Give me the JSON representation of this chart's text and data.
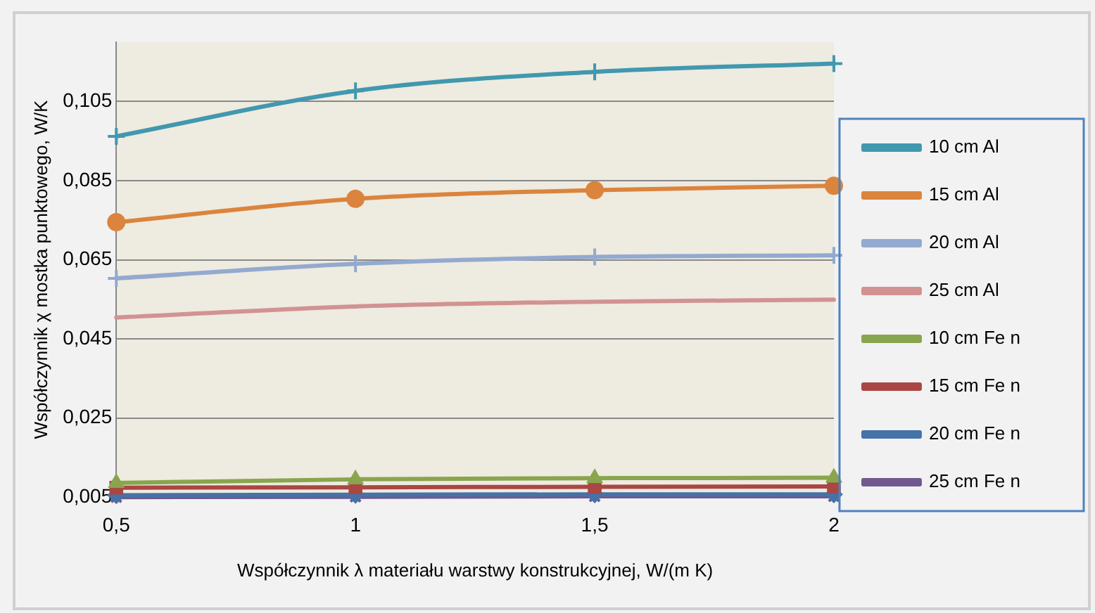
{
  "chart_data": {
    "type": "line",
    "xlabel": "Współczynnik λ materiału warstwy konstrukcyjnej, W/(m K)",
    "ylabel": "Współczynnik χ mostka punktowego, W/K",
    "x": [
      0.5,
      1,
      1.5,
      2
    ],
    "xlim": [
      0.5,
      2
    ],
    "xticks": [
      {
        "value": 0.5,
        "label": "0,5"
      },
      {
        "value": 1,
        "label": "1"
      },
      {
        "value": 1.5,
        "label": "1,5"
      },
      {
        "value": 2,
        "label": "2"
      }
    ],
    "ylim": [
      0.005,
      0.12
    ],
    "yticks": [
      {
        "value": 0.005,
        "label": "0,005"
      },
      {
        "value": 0.025,
        "label": "0,025"
      },
      {
        "value": 0.045,
        "label": "0,045"
      },
      {
        "value": 0.065,
        "label": "0,065"
      },
      {
        "value": 0.085,
        "label": "0,085"
      },
      {
        "value": 0.105,
        "label": "0,105"
      }
    ],
    "grid": "y",
    "legend": "right",
    "line_style": "solid",
    "series": [
      {
        "name": "10 cm Al",
        "color": "#4198af",
        "marker": "cross",
        "values": [
          0.0962,
          0.1077,
          0.1125,
          0.1146
        ]
      },
      {
        "name": "15 cm Al",
        "color": "#db843d",
        "marker": "circle",
        "values": [
          0.0745,
          0.0804,
          0.0826,
          0.0837
        ]
      },
      {
        "name": "20 cm Al",
        "color": "#93a9cf",
        "marker": "cross",
        "values": [
          0.0603,
          0.064,
          0.0657,
          0.0661
        ]
      },
      {
        "name": "25 cm Al",
        "color": "#d19392",
        "marker": "none",
        "values": [
          0.0504,
          0.0532,
          0.0544,
          0.0549
        ]
      },
      {
        "name": "10 cm Fe n",
        "color": "#89a54e",
        "marker": "triangle",
        "values": [
          0.0086,
          0.0095,
          0.0098,
          0.0099
        ]
      },
      {
        "name": "15 cm Fe n",
        "color": "#aa4643",
        "marker": "square",
        "values": [
          0.0074,
          0.0075,
          0.0076,
          0.0077
        ]
      },
      {
        "name": "20 cm Fe n",
        "color": "#4572a7",
        "marker": "diamond",
        "values": [
          0.0055,
          0.0056,
          0.0057,
          0.0057
        ]
      },
      {
        "name": "25 cm Fe n",
        "color": "#71588f",
        "marker": "x",
        "values": [
          0.005,
          0.0051,
          0.0052,
          0.0052
        ]
      }
    ]
  }
}
